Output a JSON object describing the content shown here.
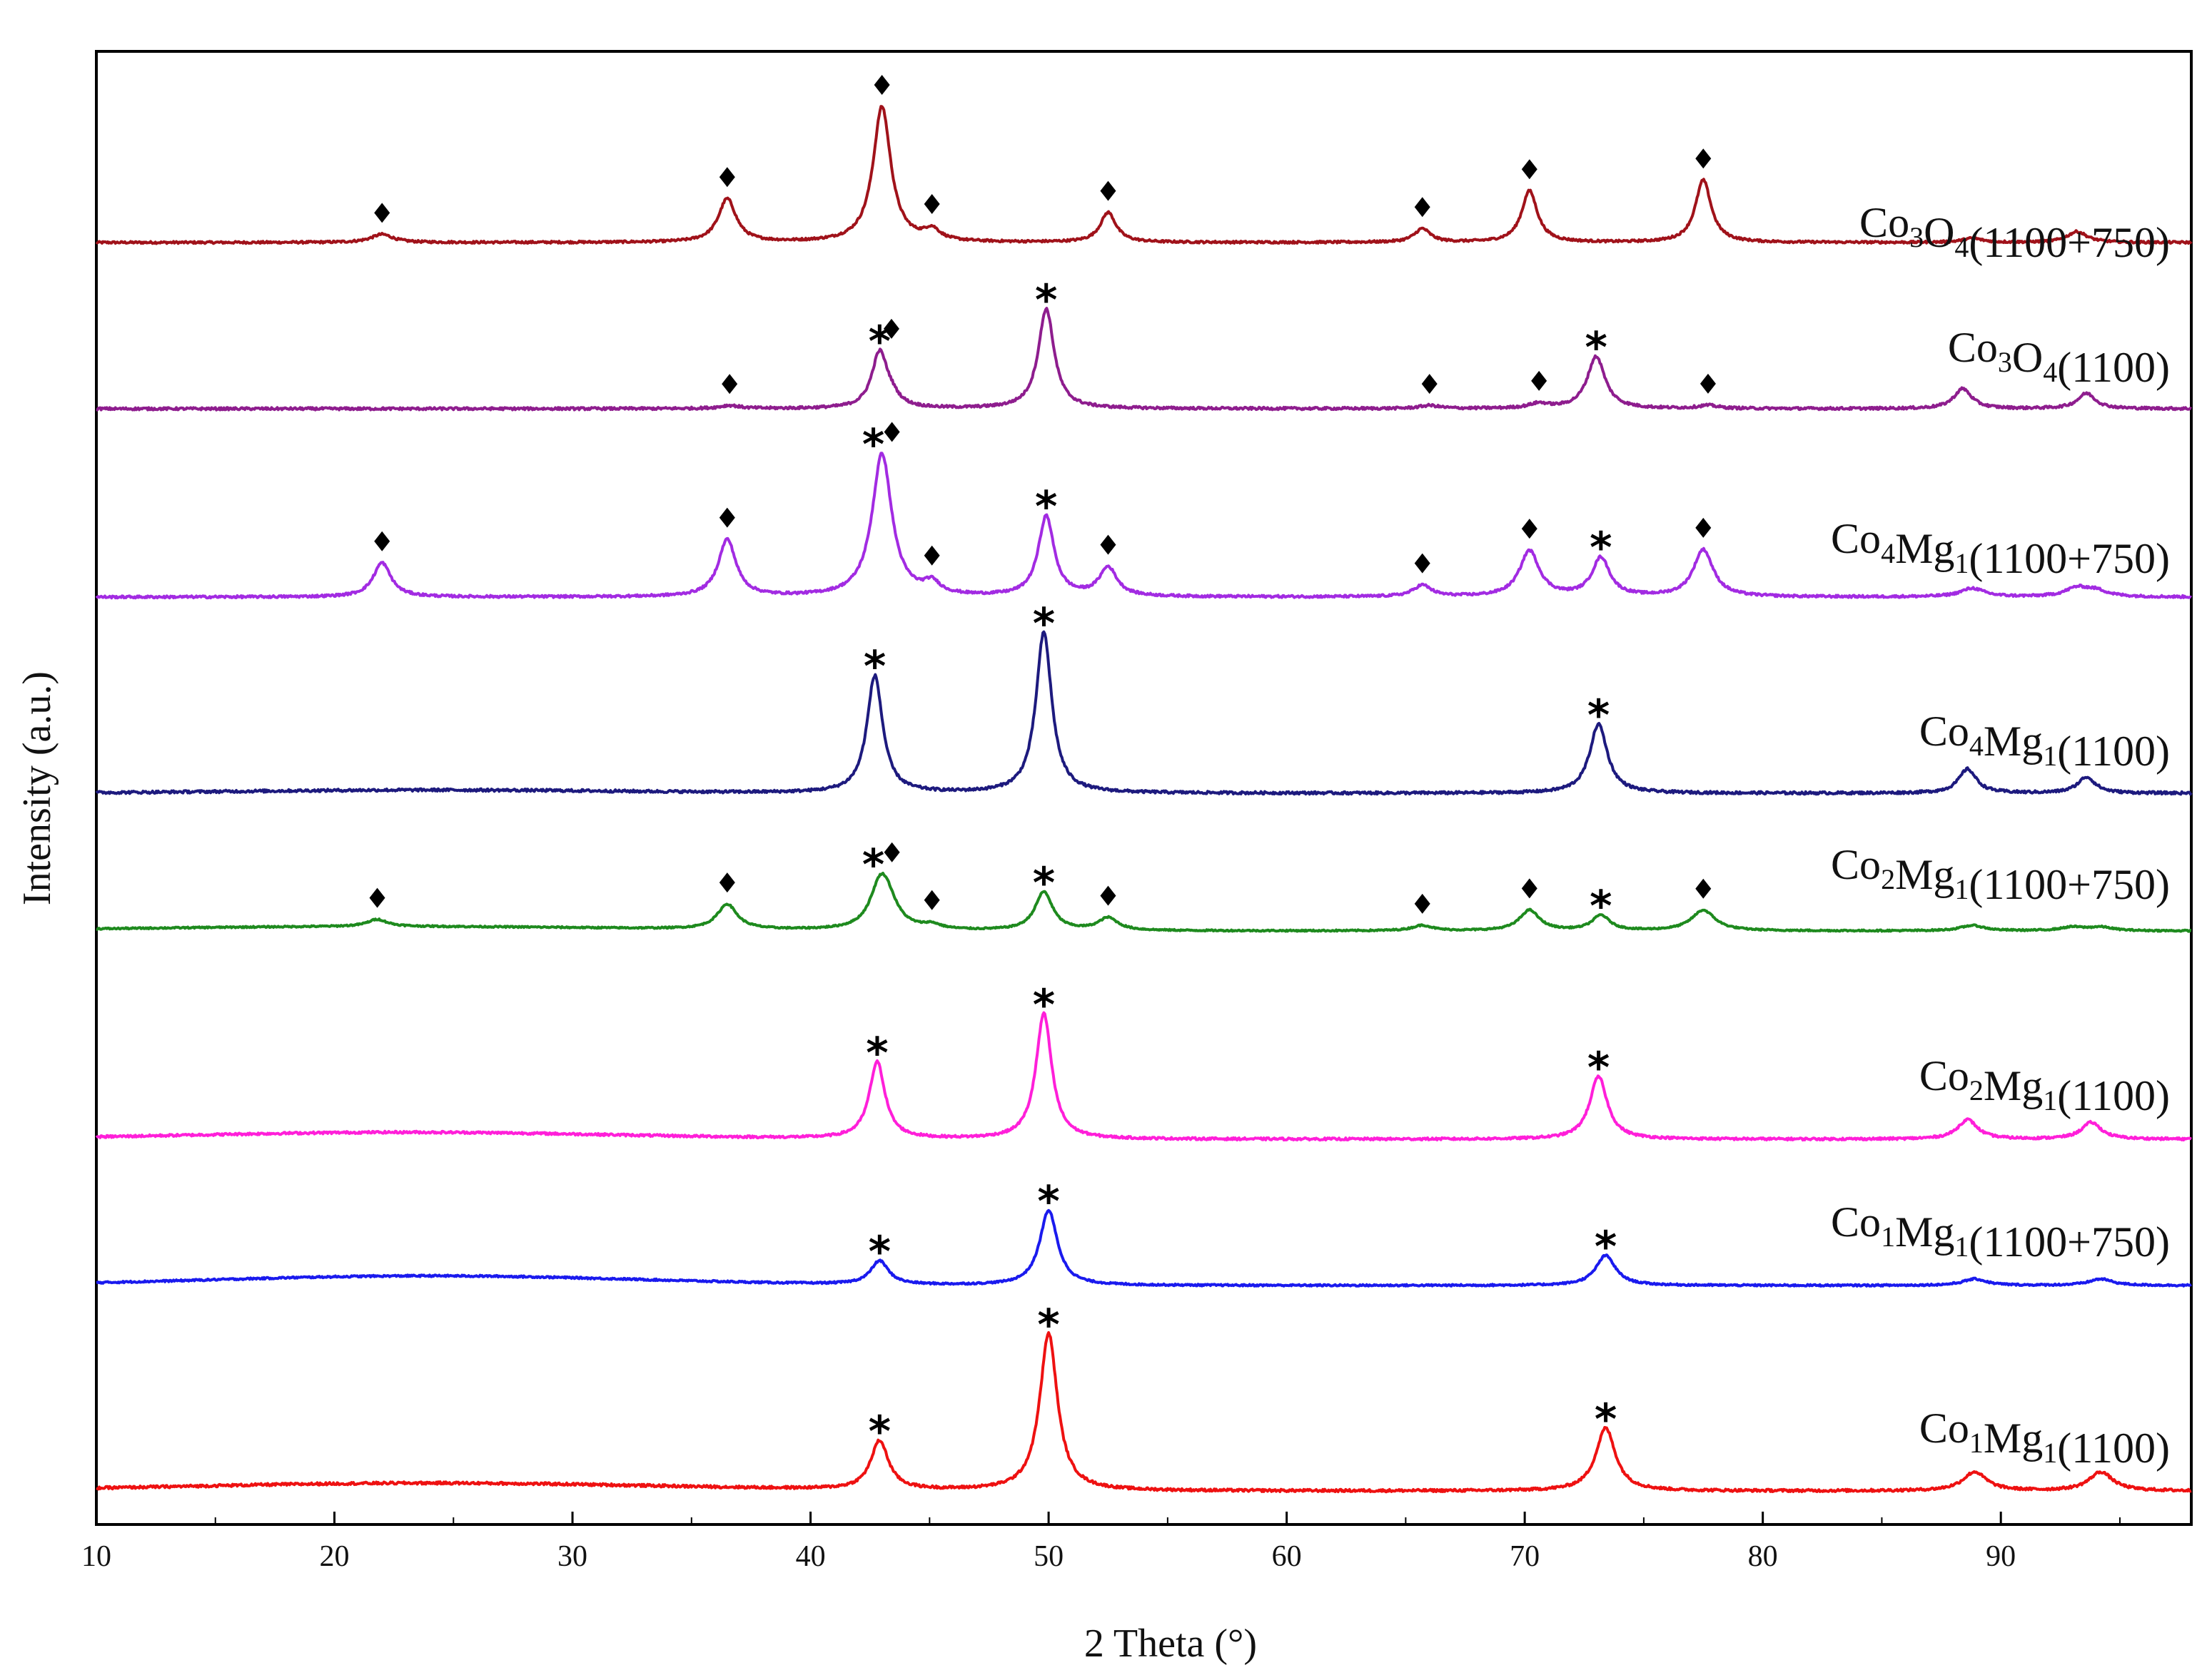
{
  "chart_data": {
    "type": "line",
    "xlabel": "2 Theta (°)",
    "ylabel": "Intensity (a.u.)",
    "xlim": [
      10,
      98
    ],
    "x_ticks": [
      10,
      20,
      30,
      40,
      50,
      60,
      70,
      80,
      90
    ],
    "y_ticks": [],
    "grid": false,
    "legend": "inline labels at right of each trace",
    "series": [
      {
        "name": "Co3O4(1100+750)",
        "label_parts": [
          [
            "Co",
            false
          ],
          [
            "3",
            true
          ],
          [
            "O",
            false
          ],
          [
            "4",
            true
          ],
          [
            "(1100+750)",
            false
          ]
        ],
        "color": "#a0121a",
        "peaks": [
          [
            22.0,
            0.06,
            0.55
          ],
          [
            36.5,
            0.32,
            0.45
          ],
          [
            43.0,
            1.0,
            0.45
          ],
          [
            45.1,
            0.08,
            0.4
          ],
          [
            52.5,
            0.22,
            0.4
          ],
          [
            65.7,
            0.1,
            0.4
          ],
          [
            70.2,
            0.38,
            0.4
          ],
          [
            77.5,
            0.46,
            0.4
          ],
          [
            88.8,
            0.03,
            0.5
          ],
          [
            93.2,
            0.08,
            0.5
          ]
        ],
        "hump": [
          0,
          23,
          8
        ],
        "markers": [
          [
            22.0,
            "diamond"
          ],
          [
            36.5,
            "diamond"
          ],
          [
            43.0,
            "diamond"
          ],
          [
            45.1,
            "diamond"
          ],
          [
            52.5,
            "diamond"
          ],
          [
            65.7,
            "diamond"
          ],
          [
            70.2,
            "diamond"
          ],
          [
            77.5,
            "diamond"
          ]
        ]
      },
      {
        "name": "Co3O4(1100)",
        "label_parts": [
          [
            "Co",
            false
          ],
          [
            "3",
            true
          ],
          [
            "O",
            false
          ],
          [
            "4",
            true
          ],
          [
            "(1100)",
            false
          ]
        ],
        "color": "#8e1d8e",
        "peaks": [
          [
            36.6,
            0.02,
            0.5
          ],
          [
            42.9,
            0.36,
            0.4
          ],
          [
            43.4,
            0.05,
            0.4
          ],
          [
            49.9,
            0.65,
            0.4
          ],
          [
            66.0,
            0.02,
            0.5
          ],
          [
            70.6,
            0.03,
            0.5
          ],
          [
            73.0,
            0.34,
            0.45
          ],
          [
            77.7,
            0.02,
            0.5
          ],
          [
            88.4,
            0.13,
            0.45
          ],
          [
            93.6,
            0.1,
            0.45
          ]
        ],
        "hump": [
          0,
          23,
          8
        ],
        "markers": [
          [
            42.9,
            "star"
          ],
          [
            49.9,
            "star"
          ],
          [
            73.0,
            "star"
          ],
          [
            36.6,
            "diamond"
          ],
          [
            43.4,
            "diamond"
          ],
          [
            66.0,
            "diamond"
          ],
          [
            70.6,
            "diamond"
          ],
          [
            77.7,
            "diamond"
          ]
        ]
      },
      {
        "name": "Co4Mg1(1100+750)",
        "label_parts": [
          [
            "Co",
            false
          ],
          [
            "4",
            true
          ],
          [
            "Mg",
            false
          ],
          [
            "1",
            true
          ],
          [
            "(1100+750)",
            false
          ]
        ],
        "color": "#a22be2",
        "peaks": [
          [
            22.0,
            0.24,
            0.45
          ],
          [
            36.5,
            0.4,
            0.45
          ],
          [
            43.0,
            1.0,
            0.5
          ],
          [
            45.1,
            0.08,
            0.4
          ],
          [
            49.9,
            0.56,
            0.4
          ],
          [
            52.5,
            0.2,
            0.45
          ],
          [
            65.7,
            0.08,
            0.45
          ],
          [
            70.2,
            0.32,
            0.5
          ],
          [
            73.2,
            0.27,
            0.45
          ],
          [
            77.5,
            0.33,
            0.5
          ],
          [
            88.8,
            0.06,
            0.6
          ],
          [
            93.2,
            0.06,
            0.6
          ],
          [
            94.0,
            0.04,
            0.6
          ]
        ],
        "hump": [
          0,
          23,
          8
        ],
        "markers": [
          [
            22.0,
            "diamond"
          ],
          [
            36.5,
            "diamond"
          ],
          [
            43.0,
            "star-diamond"
          ],
          [
            45.1,
            "diamond"
          ],
          [
            49.9,
            "star"
          ],
          [
            52.5,
            "diamond"
          ],
          [
            65.7,
            "diamond"
          ],
          [
            70.2,
            "diamond"
          ],
          [
            73.2,
            "star"
          ],
          [
            77.5,
            "diamond"
          ]
        ]
      },
      {
        "name": "Co4Mg1(1100)",
        "label_parts": [
          [
            "Co",
            false
          ],
          [
            "4",
            true
          ],
          [
            "Mg",
            false
          ],
          [
            "1",
            true
          ],
          [
            "(1100)",
            false
          ]
        ],
        "color": "#1d1a7e",
        "peaks": [
          [
            42.7,
            0.73,
            0.4
          ],
          [
            49.8,
            1.0,
            0.4
          ],
          [
            73.1,
            0.43,
            0.45
          ],
          [
            88.6,
            0.15,
            0.45
          ],
          [
            93.6,
            0.1,
            0.45
          ]
        ],
        "hump": [
          0.02,
          24,
          8
        ],
        "markers": [
          [
            42.7,
            "star"
          ],
          [
            49.8,
            "star"
          ],
          [
            73.1,
            "star"
          ]
        ]
      },
      {
        "name": "Co2Mg1(1100+750)",
        "label_parts": [
          [
            "Co",
            false
          ],
          [
            "2",
            true
          ],
          [
            "Mg",
            false
          ],
          [
            "1",
            true
          ],
          [
            "(1100+750)",
            false
          ]
        ],
        "color": "#1e8a1e",
        "peaks": [
          [
            21.8,
            0.08,
            0.5
          ],
          [
            36.5,
            0.28,
            0.5
          ],
          [
            42.9,
            0.38,
            0.5
          ],
          [
            43.2,
            0.3,
            0.55
          ],
          [
            45.1,
            0.05,
            0.45
          ],
          [
            49.8,
            0.43,
            0.45
          ],
          [
            52.5,
            0.14,
            0.5
          ],
          [
            65.7,
            0.06,
            0.5
          ],
          [
            70.2,
            0.23,
            0.5
          ],
          [
            73.2,
            0.17,
            0.45
          ],
          [
            77.5,
            0.23,
            0.6
          ],
          [
            88.8,
            0.06,
            0.6
          ],
          [
            93.0,
            0.04,
            0.6
          ],
          [
            94.2,
            0.04,
            0.6
          ]
        ],
        "hump": [
          0.05,
          22,
          10
        ],
        "markers": [
          [
            21.8,
            "diamond"
          ],
          [
            36.5,
            "diamond"
          ],
          [
            43.0,
            "star-diamond"
          ],
          [
            45.1,
            "diamond"
          ],
          [
            49.8,
            "star"
          ],
          [
            52.5,
            "diamond"
          ],
          [
            65.7,
            "diamond"
          ],
          [
            70.2,
            "diamond"
          ],
          [
            73.2,
            "star"
          ],
          [
            77.5,
            "diamond"
          ]
        ]
      },
      {
        "name": "Co2Mg1(1100)",
        "label_parts": [
          [
            "Co",
            false
          ],
          [
            "2",
            true
          ],
          [
            "Mg",
            false
          ],
          [
            "1",
            true
          ],
          [
            "(1100)",
            false
          ]
        ],
        "color": "#ff1fd9",
        "peaks": [
          [
            42.8,
            0.55,
            0.4
          ],
          [
            49.8,
            0.9,
            0.4
          ],
          [
            73.1,
            0.45,
            0.45
          ],
          [
            88.6,
            0.14,
            0.5
          ],
          [
            93.8,
            0.12,
            0.5
          ]
        ],
        "hump": [
          0.05,
          23,
          9
        ],
        "markers": [
          [
            42.8,
            "star"
          ],
          [
            49.8,
            "star"
          ],
          [
            73.1,
            "star"
          ]
        ]
      },
      {
        "name": "Co1Mg1(1100+750)",
        "label_parts": [
          [
            "Co",
            false
          ],
          [
            "1",
            true
          ],
          [
            "Mg",
            false
          ],
          [
            "1",
            true
          ],
          [
            "(1100+750)",
            false
          ]
        ],
        "color": "#1a1aee",
        "peaks": [
          [
            42.9,
            0.22,
            0.45
          ],
          [
            50.0,
            0.7,
            0.45
          ],
          [
            73.4,
            0.28,
            0.5
          ],
          [
            88.9,
            0.06,
            0.6
          ],
          [
            94.2,
            0.06,
            0.6
          ]
        ],
        "hump": [
          0.09,
          24,
          9
        ],
        "markers": [
          [
            42.9,
            "star"
          ],
          [
            50.0,
            "star"
          ],
          [
            73.4,
            "star"
          ]
        ]
      },
      {
        "name": "Co1Mg1(1100)",
        "label_parts": [
          [
            "Co",
            false
          ],
          [
            "1",
            true
          ],
          [
            "Mg",
            false
          ],
          [
            "1",
            true
          ],
          [
            "(1100)",
            false
          ]
        ],
        "color": "#ee1111",
        "peaks": [
          [
            42.9,
            0.31,
            0.45
          ],
          [
            50.0,
            1.0,
            0.45
          ],
          [
            73.4,
            0.4,
            0.5
          ],
          [
            88.9,
            0.12,
            0.6
          ],
          [
            94.2,
            0.12,
            0.6
          ]
        ],
        "hump": [
          0.05,
          24,
          10
        ],
        "markers": [
          [
            42.9,
            "star"
          ],
          [
            50.0,
            "star"
          ],
          [
            73.4,
            "star"
          ]
        ]
      }
    ]
  }
}
